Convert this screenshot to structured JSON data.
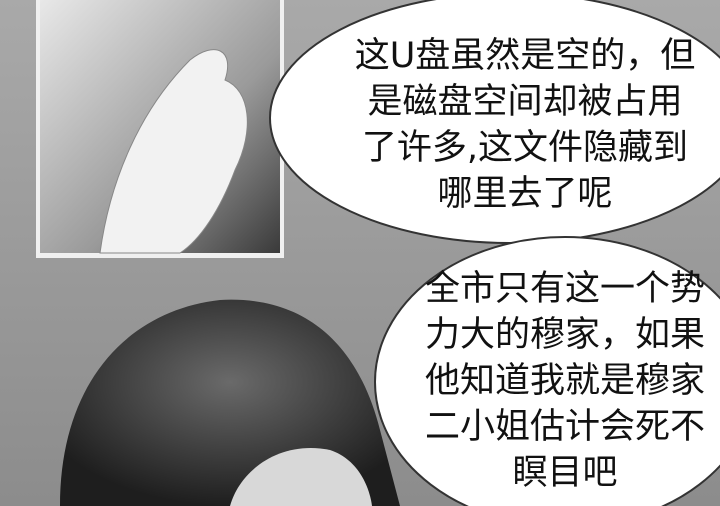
{
  "bubbles": [
    {
      "lines": [
        "这U盘虽然是空的，但",
        "是磁盘空间却被占用",
        "了许多,这文件隐藏到",
        "哪里去了呢"
      ]
    },
    {
      "lines": [
        "全市只有这一个势",
        "力大的穆家，如果",
        "他知道我就是穆家",
        "二小姐估计会死不",
        "瞑目吧"
      ]
    }
  ]
}
